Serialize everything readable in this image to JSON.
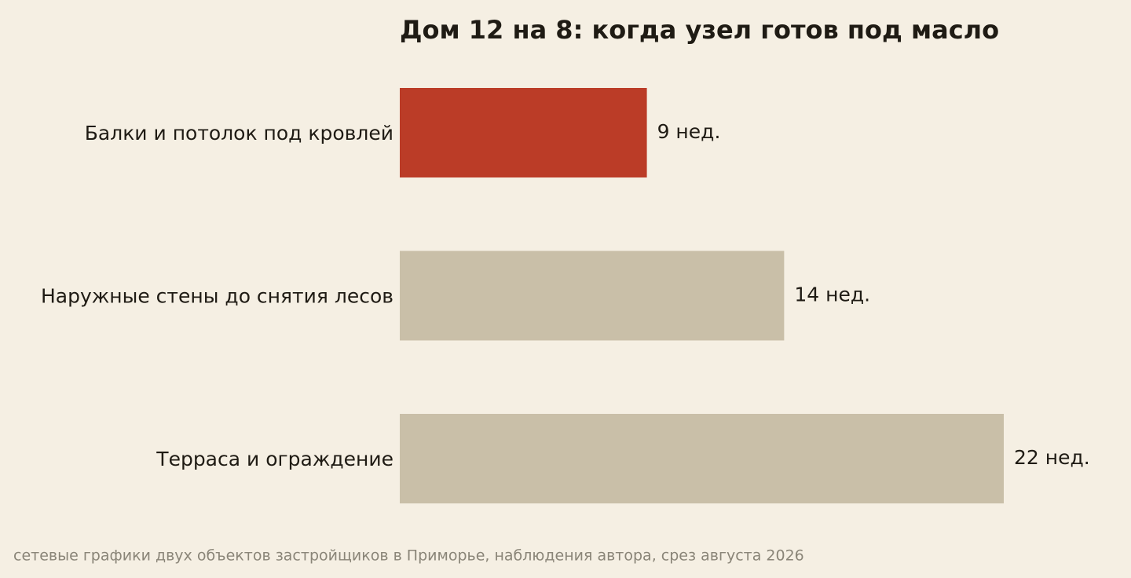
{
  "chart_data": {
    "type": "hbar",
    "title": "Дом 12 на 8: когда узел готов под масло",
    "categories": [
      "Балки и потолок под кровлей",
      "Наружные стены до снятия лесов",
      "Терраса и ограждение"
    ],
    "values": [
      9,
      14,
      22
    ],
    "value_labels": [
      "9 нед.",
      "14 нед.",
      "22 нед."
    ],
    "colors": [
      "#bb3c27",
      "#c9bfa8",
      "#c9bfa8"
    ],
    "source": "сетевые графики двух объектов застройщиков в Приморье, наблюдения автора, срез августа 2026"
  }
}
